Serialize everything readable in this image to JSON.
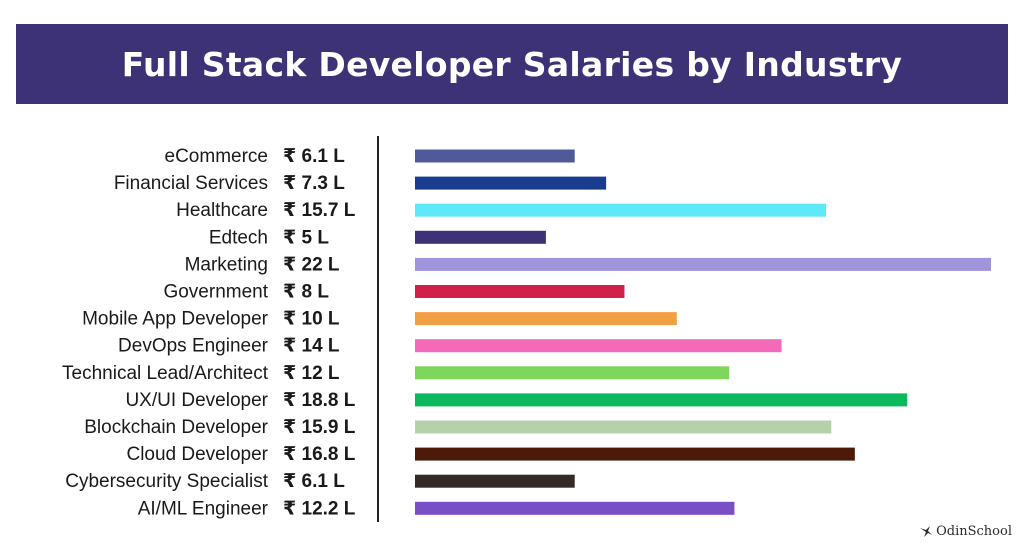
{
  "chart_data": {
    "type": "bar",
    "orientation": "horizontal",
    "title": "Full Stack Developer Salaries by Industry",
    "currency_symbol": "₹",
    "unit_suffix": "L",
    "xlim": [
      0,
      22
    ],
    "grid": false,
    "categories": [
      "eCommerce",
      "Financial Services",
      "Healthcare",
      "Edtech",
      "Marketing",
      "Government",
      "Mobile App Developer",
      "DevOps Engineer",
      "Technical Lead/Architect",
      "UX/UI Developer",
      "Blockchain Developer",
      "Cloud Developer",
      "Cybersecurity Specialist",
      "AI/ML Engineer"
    ],
    "values": [
      6.1,
      7.3,
      15.7,
      5,
      22,
      8,
      10,
      14,
      12,
      18.8,
      15.9,
      16.8,
      6.1,
      12.2
    ],
    "value_labels": [
      "₹ 6.1 L",
      "₹ 7.3 L",
      "₹ 15.7 L",
      "₹ 5 L",
      "₹ 22 L",
      "₹ 8 L",
      "₹ 10 L",
      "₹ 14 L",
      "₹ 12 L",
      "₹ 18.8 L",
      "₹ 15.9 L",
      "₹ 16.8 L",
      "₹ 6.1 L",
      "₹ 12.2 L"
    ],
    "colors": [
      "#4e5a9a",
      "#1a3c8f",
      "#5ee8f8",
      "#3e3276",
      "#a094dc",
      "#cf2149",
      "#f2a046",
      "#f56ab8",
      "#7fd65c",
      "#0bb85b",
      "#b5d1a9",
      "#4d1a0a",
      "#322a26",
      "#7a4ec4"
    ]
  },
  "colors": {
    "banner": "#3e3276",
    "title_text": "#ffffff",
    "axis": "#222222"
  },
  "brand": {
    "name": "OdinSchool",
    "icon": "bird-logo-icon"
  }
}
